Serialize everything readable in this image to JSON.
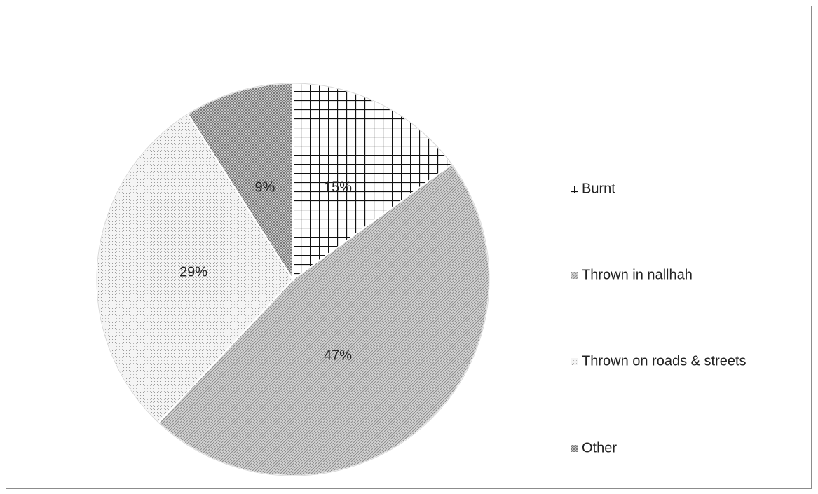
{
  "chart_data": {
    "type": "pie",
    "title": "",
    "categories": [
      "Burnt",
      "Thrown in nallhah",
      "Thrown on roads & streets",
      "Other"
    ],
    "values": [
      15,
      47,
      29,
      9
    ],
    "value_labels": [
      "15%",
      "47%",
      "29%",
      "9%"
    ],
    "legend_position": "right",
    "start_angle_deg": 0,
    "direction": "clockwise",
    "fill_patterns": [
      "grid",
      "fine-diagonal",
      "fine-dots",
      "checker"
    ]
  }
}
